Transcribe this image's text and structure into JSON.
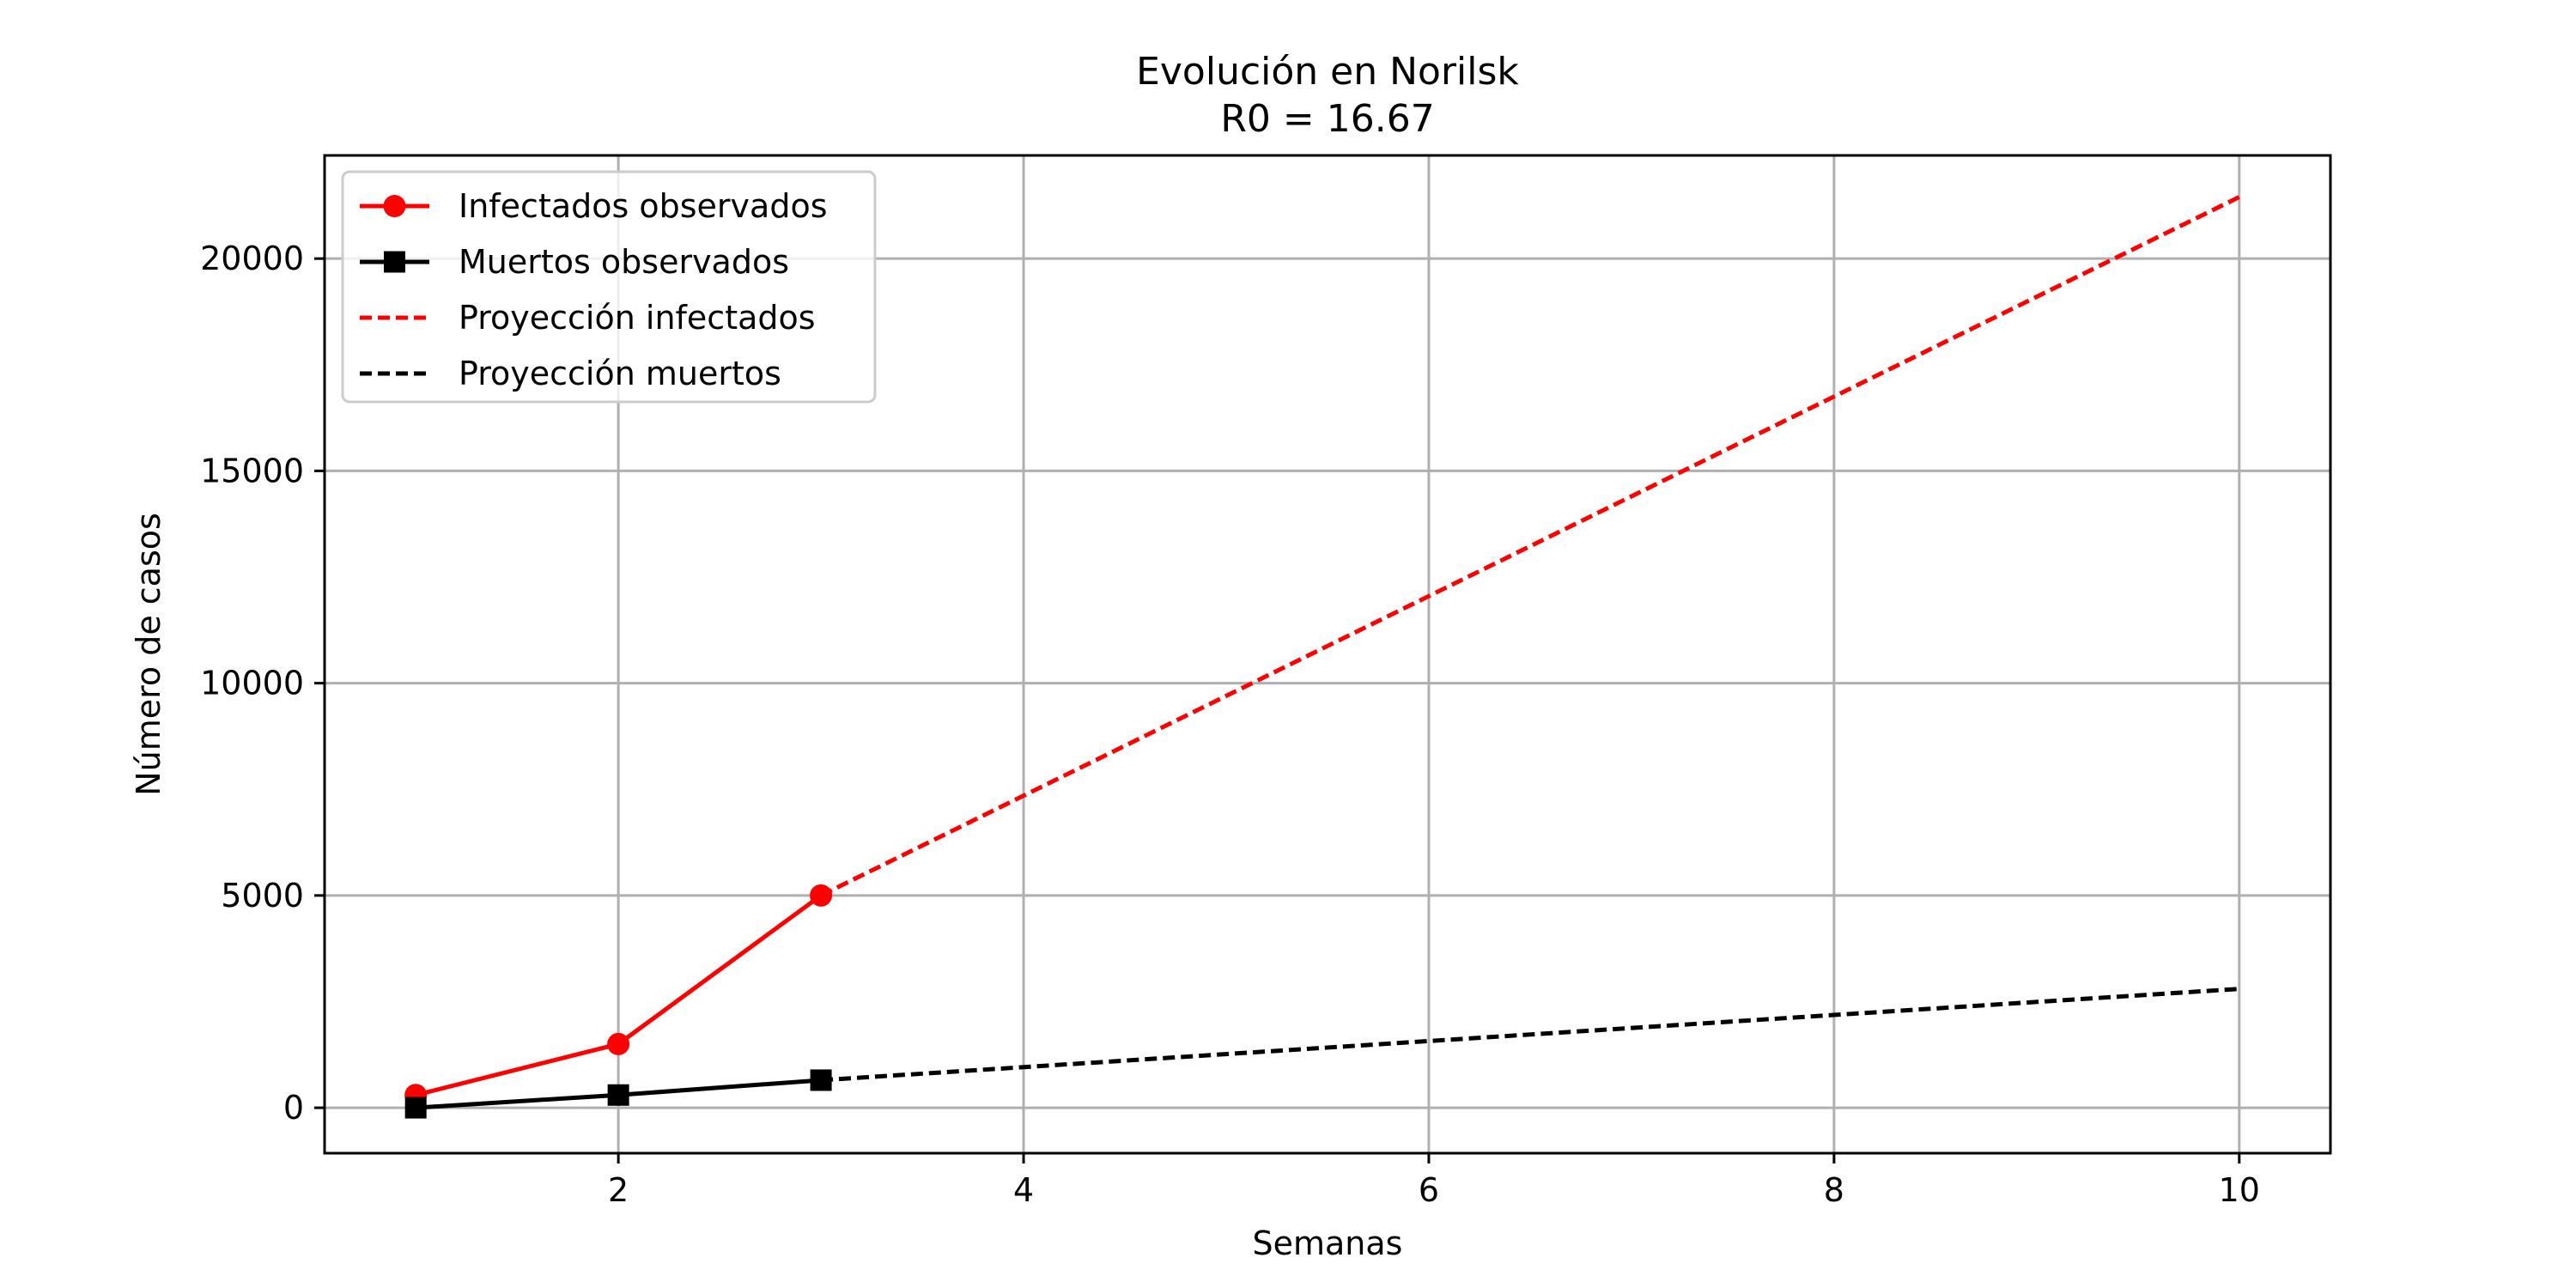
{
  "chart_data": {
    "type": "line",
    "title": "Evolución en Norilsk",
    "subtitle": "R0 = 16.67",
    "xlabel": "Semanas",
    "ylabel": "Número de casos",
    "xlim": [
      0.55,
      10.45
    ],
    "ylim": [
      -1070,
      22430
    ],
    "xticks": [
      2,
      4,
      6,
      8,
      10
    ],
    "yticks": [
      0,
      5000,
      10000,
      15000,
      20000
    ],
    "grid": true,
    "legend_position": "top-left",
    "series": [
      {
        "name": "Infectados observados",
        "color": "#ff0000",
        "style": "solid",
        "marker": "circle",
        "x": [
          1,
          2,
          3
        ],
        "y": [
          300,
          1500,
          5000
        ]
      },
      {
        "name": "Muertos observados",
        "color": "#000000",
        "style": "solid",
        "marker": "square",
        "x": [
          1,
          2,
          3
        ],
        "y": [
          0,
          300,
          650
        ]
      },
      {
        "name": "Proyección infectados",
        "color": "#ff0000",
        "style": "dashed",
        "marker": "none",
        "x": [
          3,
          10
        ],
        "y": [
          5000,
          21450
        ]
      },
      {
        "name": "Proyección muertos",
        "color": "#000000",
        "style": "dashed",
        "marker": "none",
        "x": [
          3,
          10
        ],
        "y": [
          650,
          2800
        ]
      }
    ]
  }
}
